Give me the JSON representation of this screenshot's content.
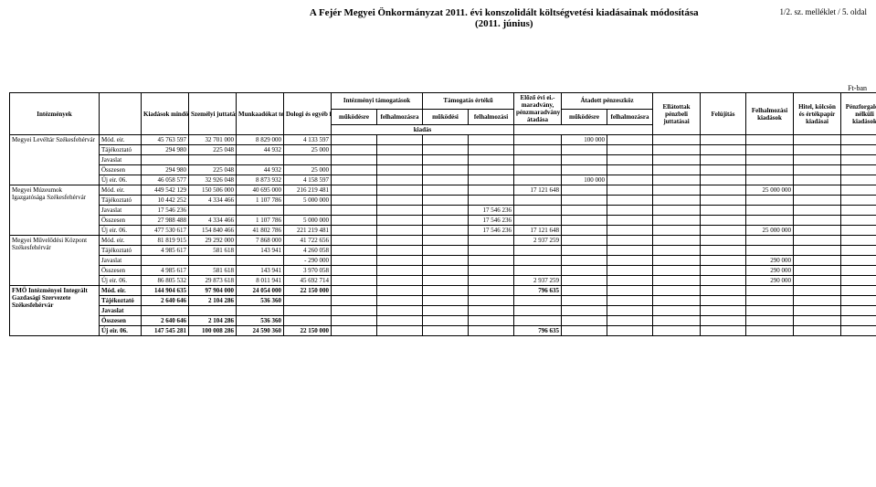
{
  "header": {
    "title": "A Fejér Megyei Önkormányzat 2011. évi konszolidált költségvetési kiadásainak módosítása",
    "subtitle": "(2011. június)",
    "pagenum": "1/2. sz. melléklet / 5. oldal",
    "unit": "Ft-ban"
  },
  "cols": {
    "c0": "Intézmények",
    "c1": "Kiadások mindösszesen",
    "c2": "Személyi juttatások",
    "c3": "Munkaadókat terhelő járulékok",
    "c4": "Dologi és egyéb folyó kiadások",
    "g_intezm": "Intézményi támogatások",
    "c5": "működésre",
    "c6": "felhalmozásra",
    "g_tamog": "Támogatás értékű",
    "c7": "működési",
    "c8": "felhalmozási",
    "c_kiadas": "kiadás",
    "c9": "Előző évi ei.-maradvány, pénzmaradvány átadása",
    "g_atadott": "Átadott pénzeszköz",
    "c10": "működésre",
    "c11": "felhalmozásra",
    "c12": "Ellátottak pénzbeli juttatásai",
    "c13": "Felújítás",
    "c14": "Felhalmozási kiadások",
    "c15": "Hitel, kölcsön és értékpapír kiadásai",
    "c16": "Pénzforgalom nélküli kiadások"
  },
  "rowtypes": {
    "mod": "Mód. eir.",
    "taj": "Tájékoztató",
    "jav": "Javaslat",
    "oss": "Összesen",
    "uj": "Új eir. 06."
  },
  "blocks": [
    {
      "name": "Megyei Levéltár Székesfehérvár",
      "bold_ossz_uj": false,
      "rows": [
        {
          "t": "mod",
          "v": [
            "45 763 597",
            "32 701 000",
            "8 829 000",
            "4 133 597",
            "",
            "",
            "",
            "",
            "",
            "100 000",
            "",
            "",
            "",
            "",
            "",
            ""
          ]
        },
        {
          "t": "taj",
          "v": [
            "294 980",
            "225 048",
            "44 932",
            "25 000",
            "",
            "",
            "",
            "",
            "",
            "",
            "",
            "",
            "",
            "",
            "",
            ""
          ]
        },
        {
          "t": "jav",
          "v": [
            "",
            "",
            "",
            "",
            "",
            "",
            "",
            "",
            "",
            "",
            "",
            "",
            "",
            "",
            "",
            ""
          ]
        },
        {
          "t": "oss",
          "v": [
            "294 980",
            "225 048",
            "44 932",
            "25 000",
            "",
            "",
            "",
            "",
            "",
            "",
            "",
            "",
            "",
            "",
            "",
            ""
          ]
        },
        {
          "t": "uj",
          "v": [
            "46 058 577",
            "32 926 048",
            "8 873 932",
            "4 158 597",
            "",
            "",
            "",
            "",
            "",
            "100 000",
            "",
            "",
            "",
            "",
            "",
            ""
          ]
        }
      ]
    },
    {
      "name": "Megyei Múzeumok Igazgatósága Székesfehérvár",
      "rows": [
        {
          "t": "mod",
          "v": [
            "449 542 129",
            "150 506 000",
            "40 695 000",
            "216 219 481",
            "",
            "",
            "",
            "",
            "17 121 648",
            "",
            "",
            "",
            "",
            "25 000 000",
            "",
            ""
          ]
        },
        {
          "t": "taj",
          "v": [
            "10 442 252",
            "4 334 466",
            "1 107 786",
            "5 000 000",
            "",
            "",
            "",
            "",
            "",
            "",
            "",
            "",
            "",
            "",
            "",
            ""
          ]
        },
        {
          "t": "jav",
          "v": [
            "17 546 236",
            "",
            "",
            "",
            "",
            "",
            "",
            "17 546 236",
            "",
            "",
            "",
            "",
            "",
            "",
            "",
            ""
          ]
        },
        {
          "t": "oss",
          "v": [
            "27 988 488",
            "4 334 466",
            "1 107 786",
            "5 000 000",
            "",
            "",
            "",
            "17 546 236",
            "",
            "",
            "",
            "",
            "",
            "",
            "",
            ""
          ]
        },
        {
          "t": "uj",
          "v": [
            "477 530 617",
            "154 840 466",
            "41 802 786",
            "221 219 481",
            "",
            "",
            "",
            "17 546 236",
            "17 121 648",
            "",
            "",
            "",
            "",
            "25 000 000",
            "",
            ""
          ]
        }
      ]
    },
    {
      "name": "Megyei Művelődési Központ Székesfehérvár",
      "rows": [
        {
          "t": "mod",
          "v": [
            "81 819 915",
            "29 292 000",
            "7 868 000",
            "41 722 656",
            "",
            "",
            "",
            "",
            "2 937 259",
            "",
            "",
            "",
            "",
            "",
            "",
            ""
          ]
        },
        {
          "t": "taj",
          "v": [
            "4 985 617",
            "581 618",
            "143 941",
            "4 260 058",
            "",
            "",
            "",
            "",
            "",
            "",
            "",
            "",
            "",
            "",
            "",
            ""
          ]
        },
        {
          "t": "jav",
          "v": [
            "",
            "",
            "",
            "- 290 000",
            "",
            "",
            "",
            "",
            "",
            "",
            "",
            "",
            "",
            "290 000",
            "",
            ""
          ]
        },
        {
          "t": "oss",
          "v": [
            "4 985 617",
            "581 618",
            "143 941",
            "3 970 058",
            "",
            "",
            "",
            "",
            "",
            "",
            "",
            "",
            "",
            "290 000",
            "",
            ""
          ]
        },
        {
          "t": "uj",
          "v": [
            "86 805 532",
            "29 873 618",
            "8 011 941",
            "45 692 714",
            "",
            "",
            "",
            "",
            "2 937 259",
            "",
            "",
            "",
            "",
            "290 000",
            "",
            ""
          ]
        }
      ]
    },
    {
      "name": "FMÖ Intézményei Integrált Gazdasági Szervezete Székesfehérvár",
      "all_bold": true,
      "rows": [
        {
          "t": "mod",
          "v": [
            "144 904 635",
            "97 904 000",
            "24 054 000",
            "22 150 000",
            "",
            "",
            "",
            "",
            "796 635",
            "",
            "",
            "",
            "",
            "",
            "",
            ""
          ]
        },
        {
          "t": "taj",
          "v": [
            "2 640 646",
            "2 104 286",
            "536 360",
            "",
            "",
            "",
            "",
            "",
            "",
            "",
            "",
            "",
            "",
            "",
            "",
            ""
          ]
        },
        {
          "t": "jav",
          "v": [
            "",
            "",
            "",
            "",
            "",
            "",
            "",
            "",
            "",
            "",
            "",
            "",
            "",
            "",
            "",
            ""
          ]
        },
        {
          "t": "oss",
          "v": [
            "2 640 646",
            "2 104 286",
            "536 360",
            "",
            "",
            "",
            "",
            "",
            "",
            "",
            "",
            "",
            "",
            "",
            "",
            ""
          ]
        },
        {
          "t": "uj",
          "v": [
            "147 545 281",
            "100 008 286",
            "24 590 360",
            "22 150 000",
            "",
            "",
            "",
            "",
            "796 635",
            "",
            "",
            "",
            "",
            "",
            "",
            ""
          ]
        }
      ]
    }
  ]
}
